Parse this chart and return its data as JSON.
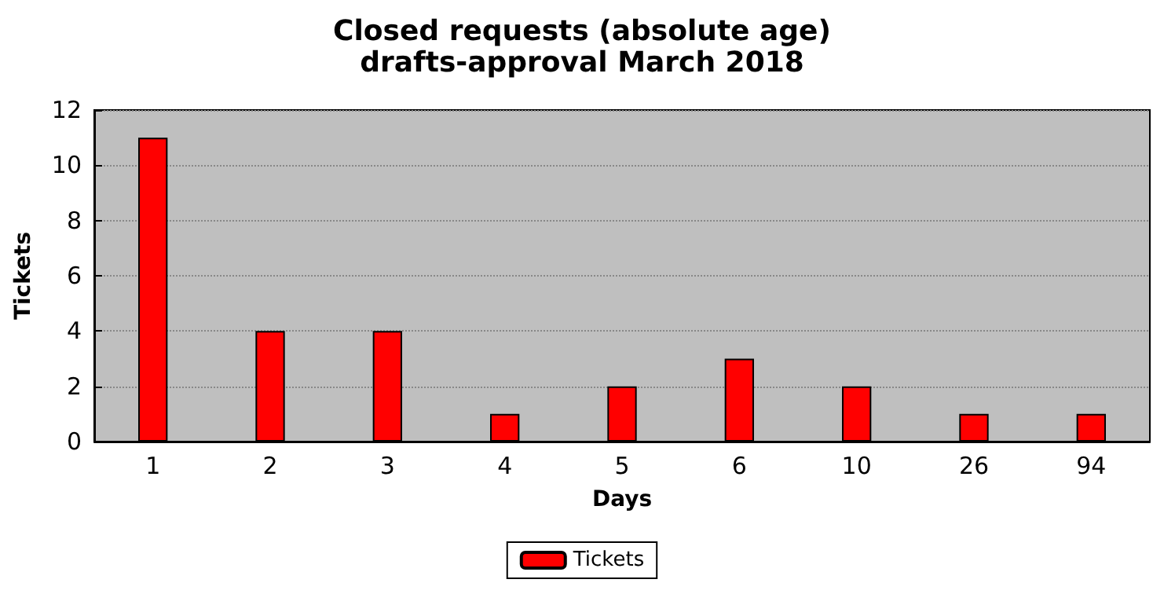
{
  "chart_data": {
    "type": "bar",
    "title": "Closed requests (absolute age)",
    "subtitle": "drafts-approval March 2018",
    "xlabel": "Days",
    "ylabel": "Tickets",
    "categories": [
      "1",
      "2",
      "3",
      "4",
      "5",
      "6",
      "10",
      "26",
      "94"
    ],
    "series": [
      {
        "name": "Tickets",
        "color": "#ff0000",
        "values": [
          11,
          4,
          4,
          1,
          2,
          3,
          2,
          1,
          1
        ]
      }
    ],
    "ylim": [
      0,
      12
    ],
    "yticks": [
      0,
      2,
      4,
      6,
      8,
      10,
      12
    ],
    "grid": "y",
    "legend": "bottom"
  }
}
